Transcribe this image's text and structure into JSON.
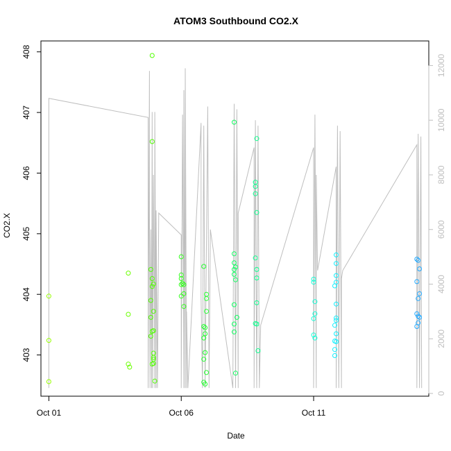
{
  "chart_data": {
    "type": "scatter",
    "title": "ATOM3 Southbound CO2.X",
    "xlabel": "Date",
    "ylabel": "CO2.X",
    "x_ticks": [
      {
        "label": "Oct 01",
        "day": 0
      },
      {
        "label": "Oct 06",
        "day": 5
      },
      {
        "label": "Oct 11",
        "day": 10
      }
    ],
    "xlim_days": [
      -0.3,
      14.35
    ],
    "ylim": [
      402.32,
      408.18
    ],
    "y_ticks": [
      403,
      404,
      405,
      406,
      407,
      408
    ],
    "y2_ticks": [
      0,
      2000,
      4000,
      6000,
      8000,
      10000,
      12000
    ],
    "y2lim": [
      -100,
      12900
    ],
    "grid": false,
    "legend": "none",
    "colors": {
      "axis": "#000000",
      "secondary_axis": "#bebebe",
      "line": "#bebebe",
      "box": "#000000"
    },
    "series": [
      {
        "type": "points",
        "points": [
          {
            "day": 0.0,
            "y": 403.97,
            "color": "#96ff00"
          },
          {
            "day": 0.0,
            "y": 403.24,
            "color": "#96ff00"
          },
          {
            "day": 0.0,
            "y": 402.56,
            "color": "#96ff00"
          },
          {
            "day": 3.0,
            "y": 404.35,
            "color": "#6aff00"
          },
          {
            "day": 3.0,
            "y": 403.67,
            "color": "#6aff00"
          },
          {
            "day": 3.0,
            "y": 402.85,
            "color": "#6aff00"
          },
          {
            "day": 3.05,
            "y": 402.8,
            "color": "#6aff00"
          },
          {
            "day": 3.85,
            "y": 404.41,
            "color": "#50ff00"
          },
          {
            "day": 3.85,
            "y": 403.9,
            "color": "#50ff00"
          },
          {
            "day": 3.85,
            "y": 403.62,
            "color": "#50ff00"
          },
          {
            "day": 3.85,
            "y": 403.31,
            "color": "#50ff00"
          },
          {
            "day": 3.9,
            "y": 407.94,
            "color": "#50ff00"
          },
          {
            "day": 3.9,
            "y": 406.52,
            "color": "#50ff00"
          },
          {
            "day": 3.9,
            "y": 404.26,
            "color": "#50ff00"
          },
          {
            "day": 3.9,
            "y": 404.13,
            "color": "#50ff00"
          },
          {
            "day": 3.9,
            "y": 403.39,
            "color": "#50ff00"
          },
          {
            "day": 3.9,
            "y": 402.85,
            "color": "#50ff00"
          },
          {
            "day": 3.95,
            "y": 404.17,
            "color": "#50ff00"
          },
          {
            "day": 3.95,
            "y": 403.72,
            "color": "#50ff00"
          },
          {
            "day": 3.95,
            "y": 403.4,
            "color": "#50ff00"
          },
          {
            "day": 3.95,
            "y": 403.03,
            "color": "#50ff00"
          },
          {
            "day": 3.95,
            "y": 402.96,
            "color": "#50ff00"
          },
          {
            "day": 3.95,
            "y": 402.93,
            "color": "#50ff00"
          },
          {
            "day": 3.95,
            "y": 402.86,
            "color": "#50ff00"
          },
          {
            "day": 4.0,
            "y": 402.57,
            "color": "#50ff00"
          },
          {
            "day": 5.0,
            "y": 404.62,
            "color": "#30ff1a"
          },
          {
            "day": 5.0,
            "y": 404.32,
            "color": "#30ff1a"
          },
          {
            "day": 5.0,
            "y": 404.26,
            "color": "#30ff1a"
          },
          {
            "day": 5.0,
            "y": 404.16,
            "color": "#30ff1a"
          },
          {
            "day": 5.0,
            "y": 403.97,
            "color": "#30ff1a"
          },
          {
            "day": 5.05,
            "y": 404.18,
            "color": "#30ff1a"
          },
          {
            "day": 5.1,
            "y": 404.16,
            "color": "#30ff1a"
          },
          {
            "day": 5.1,
            "y": 404.01,
            "color": "#30ff1a"
          },
          {
            "day": 5.1,
            "y": 403.8,
            "color": "#30ff1a"
          },
          {
            "day": 5.85,
            "y": 404.46,
            "color": "#24ff30"
          },
          {
            "day": 5.85,
            "y": 403.47,
            "color": "#24ff30"
          },
          {
            "day": 5.85,
            "y": 403.28,
            "color": "#24ff30"
          },
          {
            "day": 5.85,
            "y": 402.93,
            "color": "#24ff30"
          },
          {
            "day": 5.85,
            "y": 402.55,
            "color": "#24ff30"
          },
          {
            "day": 5.9,
            "y": 403.45,
            "color": "#24ff30"
          },
          {
            "day": 5.9,
            "y": 403.35,
            "color": "#24ff30"
          },
          {
            "day": 5.9,
            "y": 403.04,
            "color": "#24ff30"
          },
          {
            "day": 5.9,
            "y": 402.52,
            "color": "#24ff30"
          },
          {
            "day": 5.95,
            "y": 404.0,
            "color": "#24ff30"
          },
          {
            "day": 5.95,
            "y": 403.93,
            "color": "#24ff30"
          },
          {
            "day": 5.95,
            "y": 403.72,
            "color": "#24ff30"
          },
          {
            "day": 5.95,
            "y": 402.71,
            "color": "#24ff30"
          },
          {
            "day": 7.0,
            "y": 406.84,
            "color": "#10ff60"
          },
          {
            "day": 7.0,
            "y": 404.67,
            "color": "#10ff60"
          },
          {
            "day": 7.0,
            "y": 404.52,
            "color": "#10ff60"
          },
          {
            "day": 7.0,
            "y": 404.41,
            "color": "#10ff60"
          },
          {
            "day": 7.0,
            "y": 404.33,
            "color": "#10ff60"
          },
          {
            "day": 7.0,
            "y": 403.83,
            "color": "#10ff60"
          },
          {
            "day": 7.0,
            "y": 403.51,
            "color": "#10ff60"
          },
          {
            "day": 7.0,
            "y": 403.38,
            "color": "#10ff60"
          },
          {
            "day": 7.05,
            "y": 404.45,
            "color": "#10ff60"
          },
          {
            "day": 7.05,
            "y": 404.24,
            "color": "#10ff60"
          },
          {
            "day": 7.1,
            "y": 403.62,
            "color": "#10ff60"
          },
          {
            "day": 7.05,
            "y": 402.7,
            "color": "#10ff60"
          },
          {
            "day": 7.8,
            "y": 405.85,
            "color": "#10ff90"
          },
          {
            "day": 7.8,
            "y": 405.78,
            "color": "#10ff90"
          },
          {
            "day": 7.8,
            "y": 405.66,
            "color": "#10ff90"
          },
          {
            "day": 7.8,
            "y": 404.6,
            "color": "#10ff90"
          },
          {
            "day": 7.8,
            "y": 403.52,
            "color": "#10ff90"
          },
          {
            "day": 7.85,
            "y": 406.57,
            "color": "#10ff90"
          },
          {
            "day": 7.85,
            "y": 405.35,
            "color": "#10ff90"
          },
          {
            "day": 7.85,
            "y": 404.41,
            "color": "#10ff90"
          },
          {
            "day": 7.85,
            "y": 404.27,
            "color": "#10ff90"
          },
          {
            "day": 7.85,
            "y": 403.86,
            "color": "#10ff90"
          },
          {
            "day": 7.85,
            "y": 403.51,
            "color": "#10ff90"
          },
          {
            "day": 7.9,
            "y": 403.07,
            "color": "#10ff90"
          },
          {
            "day": 10.0,
            "y": 404.25,
            "color": "#14ffd8"
          },
          {
            "day": 10.0,
            "y": 404.2,
            "color": "#14ffd8"
          },
          {
            "day": 10.05,
            "y": 403.88,
            "color": "#14ffd8"
          },
          {
            "day": 10.05,
            "y": 403.68,
            "color": "#14ffd8"
          },
          {
            "day": 10.0,
            "y": 403.6,
            "color": "#14ffd8"
          },
          {
            "day": 10.0,
            "y": 403.33,
            "color": "#14ffd8"
          },
          {
            "day": 10.05,
            "y": 403.28,
            "color": "#14ffd8"
          },
          {
            "day": 10.8,
            "y": 404.14,
            "color": "#10f0ff"
          },
          {
            "day": 10.8,
            "y": 403.49,
            "color": "#10f0ff"
          },
          {
            "day": 10.8,
            "y": 403.23,
            "color": "#10f0ff"
          },
          {
            "day": 10.8,
            "y": 403.09,
            "color": "#10f0ff"
          },
          {
            "day": 10.8,
            "y": 402.99,
            "color": "#10f0ff"
          },
          {
            "day": 10.85,
            "y": 404.65,
            "color": "#10f0ff"
          },
          {
            "day": 10.85,
            "y": 404.51,
            "color": "#10f0ff"
          },
          {
            "day": 10.85,
            "y": 404.31,
            "color": "#10f0ff"
          },
          {
            "day": 10.85,
            "y": 404.2,
            "color": "#10f0ff"
          },
          {
            "day": 10.85,
            "y": 403.84,
            "color": "#10f0ff"
          },
          {
            "day": 10.85,
            "y": 403.61,
            "color": "#10f0ff"
          },
          {
            "day": 10.85,
            "y": 403.57,
            "color": "#10f0ff"
          },
          {
            "day": 10.85,
            "y": 403.35,
            "color": "#10f0ff"
          },
          {
            "day": 10.85,
            "y": 403.22,
            "color": "#10f0ff"
          },
          {
            "day": 13.9,
            "y": 404.58,
            "color": "#20a8ff"
          },
          {
            "day": 13.95,
            "y": 404.56,
            "color": "#20a8ff"
          },
          {
            "day": 14.0,
            "y": 404.42,
            "color": "#20a8ff"
          },
          {
            "day": 13.9,
            "y": 404.21,
            "color": "#20a8ff"
          },
          {
            "day": 14.0,
            "y": 404.01,
            "color": "#20a8ff"
          },
          {
            "day": 13.95,
            "y": 403.93,
            "color": "#20a8ff"
          },
          {
            "day": 13.9,
            "y": 403.68,
            "color": "#20a8ff"
          },
          {
            "day": 13.95,
            "y": 403.64,
            "color": "#20a8ff"
          },
          {
            "day": 14.0,
            "y": 403.62,
            "color": "#20a8ff"
          },
          {
            "day": 13.95,
            "y": 403.53,
            "color": "#20a8ff"
          },
          {
            "day": 13.9,
            "y": 403.47,
            "color": "#20a8ff"
          }
        ]
      },
      {
        "type": "line",
        "axis": "secondary",
        "points": [
          [
            0.0,
            200
          ],
          [
            0.0,
            10800
          ],
          [
            3.75,
            10100
          ],
          [
            3.75,
            200
          ],
          [
            3.8,
            11800
          ],
          [
            3.8,
            6500
          ],
          [
            3.82,
            200
          ],
          [
            3.85,
            6000
          ],
          [
            3.88,
            200
          ],
          [
            3.9,
            10300
          ],
          [
            3.92,
            200
          ],
          [
            3.95,
            8000
          ],
          [
            4.0,
            200
          ],
          [
            4.0,
            10300
          ],
          [
            4.05,
            200
          ],
          [
            4.05,
            6700
          ],
          [
            4.1,
            200
          ],
          [
            4.15,
            6600
          ],
          [
            5.0,
            5800
          ],
          [
            5.0,
            200
          ],
          [
            5.05,
            10200
          ],
          [
            5.1,
            200
          ],
          [
            5.1,
            11100
          ],
          [
            5.15,
            200
          ],
          [
            5.15,
            11900
          ],
          [
            5.2,
            200
          ],
          [
            5.2,
            3000
          ],
          [
            5.25,
            200
          ],
          [
            5.75,
            9900
          ],
          [
            5.75,
            3500
          ],
          [
            5.8,
            200
          ],
          [
            5.85,
            9800
          ],
          [
            5.9,
            200
          ],
          [
            6.0,
            10500
          ],
          [
            6.05,
            200
          ],
          [
            6.1,
            6000
          ],
          [
            6.95,
            200
          ],
          [
            7.0,
            10600
          ],
          [
            7.05,
            200
          ],
          [
            7.1,
            10400
          ],
          [
            7.15,
            200
          ],
          [
            7.15,
            6600
          ],
          [
            7.75,
            9000
          ],
          [
            7.75,
            200
          ],
          [
            7.8,
            10000
          ],
          [
            7.85,
            200
          ],
          [
            7.9,
            9800
          ],
          [
            7.95,
            200
          ],
          [
            8.0,
            2500
          ],
          [
            10.0,
            9000
          ],
          [
            10.0,
            200
          ],
          [
            10.05,
            10200
          ],
          [
            10.1,
            200
          ],
          [
            10.1,
            8000
          ],
          [
            10.15,
            4500
          ],
          [
            10.85,
            8300
          ],
          [
            10.85,
            200
          ],
          [
            10.9,
            9800
          ],
          [
            10.95,
            200
          ],
          [
            11.0,
            9600
          ],
          [
            11.05,
            200
          ],
          [
            11.05,
            4200
          ],
          [
            11.1,
            4500
          ],
          [
            13.9,
            9100
          ],
          [
            13.9,
            200
          ],
          [
            13.95,
            9500
          ],
          [
            14.0,
            200
          ],
          [
            14.05,
            9400
          ],
          [
            14.08,
            200
          ]
        ]
      }
    ]
  }
}
